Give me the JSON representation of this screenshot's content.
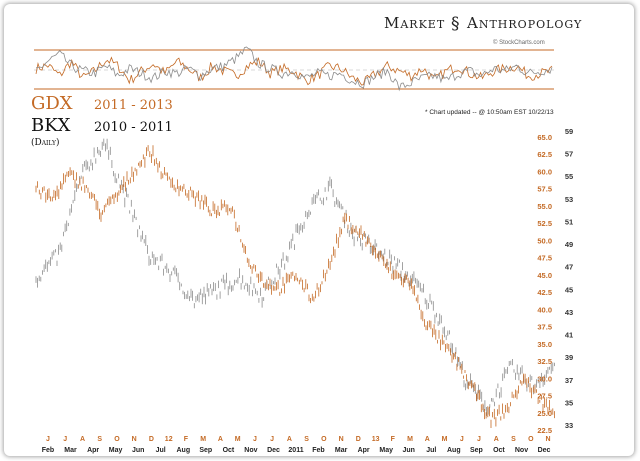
{
  "brand": {
    "left": "Market",
    "symbol": "§",
    "right": "Anthropology"
  },
  "credit": "© StockCharts.com",
  "update_note": "* Chart updated -- @ 10:50am EST 10/22/13",
  "series_a": {
    "name": "GDX",
    "years": "2011 - 2013",
    "color": "#c46a25"
  },
  "series_b": {
    "name": "BKX",
    "years": "2010 - 2011",
    "color": "#8c8c8c"
  },
  "frequency": "(Daily)",
  "chart_data": [
    {
      "type": "line",
      "role": "oscillator-panel",
      "series": [
        {
          "values": [
            0.55,
            0.62,
            0.4,
            0.7,
            0.35,
            0.5,
            0.75,
            0.6,
            0.3,
            0.5,
            0.65,
            0.45,
            0.7,
            0.55,
            0.35,
            0.6,
            0.5,
            0.4,
            0.6,
            0.7,
            0.45,
            0.55,
            0.5,
            0.3,
            0.4,
            0.6,
            0.55,
            0.35,
            0.25,
            0.45,
            0.6,
            0.5,
            0.4,
            0.55,
            0.3,
            0.5,
            0.6,
            0.45,
            0.35,
            0.5,
            0.55,
            0.6,
            0.4,
            0.45,
            0.5
          ]
        },
        {
          "values": [
            0.5,
            0.7,
            0.85,
            0.6,
            0.5,
            0.45,
            0.6,
            0.4,
            0.55,
            0.45,
            0.35,
            0.5,
            0.45,
            0.55,
            0.4,
            0.55,
            0.6,
            0.75,
            0.95,
            0.65,
            0.55,
            0.45,
            0.5,
            0.35,
            0.45,
            0.4,
            0.45,
            0.3,
            0.25,
            0.4,
            0.5,
            0.15,
            0.25,
            0.35,
            0.4,
            0.3,
            0.45,
            0.5,
            0.4,
            0.55,
            0.5,
            0.6,
            0.45,
            0.5,
            0.55
          ]
        }
      ]
    },
    {
      "type": "line",
      "style": "hlc-bars",
      "series": [
        {
          "name": "GDX",
          "axis": "left-scale",
          "x": [
            "2011-02",
            "2011-03",
            "2011-04",
            "2011-05",
            "2011-06",
            "2011-07",
            "2011-08",
            "2011-09",
            "2011-10",
            "2011-11",
            "2011-12",
            "2012-01",
            "2012-02",
            "2012-03",
            "2012-04",
            "2012-05",
            "2012-06",
            "2012-07",
            "2012-08",
            "2012-09",
            "2012-10",
            "2012-11",
            "2012-12",
            "2013-01",
            "2013-02",
            "2013-03",
            "2013-04",
            "2013-05",
            "2013-06",
            "2013-07",
            "2013-08",
            "2013-09",
            "2013-10"
          ],
          "values": [
            57.5,
            56.0,
            59.5,
            58.0,
            54.0,
            56.5,
            60.0,
            63.0,
            59.0,
            57.5,
            56.0,
            54.0,
            55.0,
            47.5,
            44.0,
            43.0,
            45.0,
            41.5,
            46.0,
            53.0,
            51.0,
            48.0,
            45.0,
            44.0,
            38.0,
            35.0,
            32.0,
            28.0,
            24.0,
            25.5,
            30.0,
            27.0,
            24.5
          ]
        },
        {
          "name": "BKX",
          "axis": "right-scale",
          "x": [
            "2010-01",
            "2010-02",
            "2010-03",
            "2010-04",
            "2010-05",
            "2010-06",
            "2010-07",
            "2010-08",
            "2010-09",
            "2010-10",
            "2010-11",
            "2010-12",
            "2011-01",
            "2011-02",
            "2011-03",
            "2011-04",
            "2011-05",
            "2011-06",
            "2011-07",
            "2011-08",
            "2011-09",
            "2011-10",
            "2011-11",
            "2011-12"
          ],
          "values": [
            46.0,
            48.0,
            55.0,
            58.0,
            53.0,
            48.0,
            46.5,
            44.0,
            45.0,
            46.0,
            44.5,
            47.5,
            52.0,
            54.0,
            50.0,
            48.5,
            47.0,
            45.0,
            42.0,
            37.0,
            34.5,
            38.0,
            36.5,
            38.5
          ]
        }
      ],
      "left_axis": {
        "ticks": [
          "65.0",
          "62.5",
          "60.0",
          "57.5",
          "55.0",
          "52.5",
          "50.0",
          "47.5",
          "45.0",
          "42.5",
          "40.0",
          "37.5",
          "35.0",
          "32.5",
          "30.0",
          "27.5",
          "25.0",
          "22.5"
        ],
        "ylim": [
          22.5,
          65.0
        ]
      },
      "right_axis": {
        "ticks": [
          "59",
          "57",
          "55",
          "53",
          "51",
          "49",
          "47",
          "45",
          "43",
          "41",
          "39",
          "37",
          "35",
          "33"
        ],
        "ylim": [
          33,
          59
        ]
      },
      "x_ticks_top": [
        "J",
        "J",
        "A",
        "S",
        "O",
        "N",
        "D",
        "12",
        "F",
        "M",
        "A",
        "M",
        "J",
        "J",
        "A",
        "S",
        "O",
        "N",
        "D",
        "13",
        "F",
        "M",
        "A",
        "M",
        "J",
        "J",
        "A",
        "S",
        "O",
        "N"
      ],
      "x_ticks_bottom": [
        "Feb",
        "Mar",
        "Apr",
        "May",
        "Jun",
        "Jul",
        "Aug",
        "Sep",
        "Oct",
        "Nov",
        "Dec",
        "2011",
        "Feb",
        "Mar",
        "Apr",
        "May",
        "Jun",
        "Jul",
        "Aug",
        "Sep",
        "Oct",
        "Nov",
        "Dec"
      ]
    }
  ]
}
